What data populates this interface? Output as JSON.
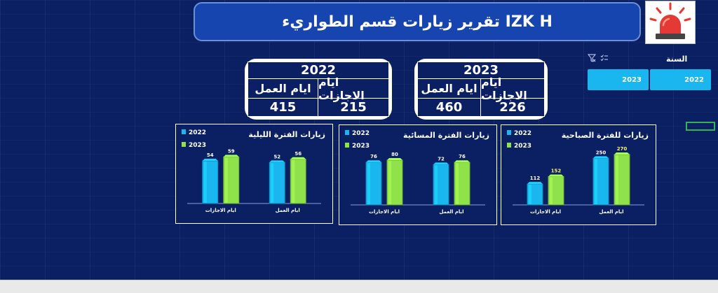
{
  "header": {
    "title": "تقرير زيارات قسم الطواريء IZK H"
  },
  "logo": {
    "icon": "siren-icon"
  },
  "slicer": {
    "label": "السنة",
    "icons": [
      "clear-filter-icon",
      "multi-select-icon"
    ],
    "items": [
      "2022",
      "2023"
    ],
    "color": "#19b6f0"
  },
  "kpis": [
    {
      "year": "2023",
      "work_label": "ايام العمل",
      "holiday_label": "ايام الاجازات",
      "work_value": "460",
      "holiday_value": "226"
    },
    {
      "year": "2022",
      "work_label": "ايام العمل",
      "holiday_label": "ايام الاجازات",
      "work_value": "415",
      "holiday_value": "215"
    }
  ],
  "chart_data": [
    {
      "type": "bar",
      "title": "زيارات للفترة الصباحية",
      "categories": [
        "ايام العمل",
        "ايام الاجازات"
      ],
      "series": [
        {
          "name": "2022",
          "values": [
            250,
            112
          ],
          "color": "#19b6f0"
        },
        {
          "name": "2023",
          "values": [
            270,
            152
          ],
          "color": "#8fe24a"
        }
      ],
      "ylim": [
        0,
        300
      ],
      "legend": "top-left"
    },
    {
      "type": "bar",
      "title": "زيارات الفترة المسائية",
      "categories": [
        "ايام العمل",
        "ايام الاجازات"
      ],
      "series": [
        {
          "name": "2022",
          "values": [
            72,
            76
          ],
          "color": "#19b6f0"
        },
        {
          "name": "2023",
          "values": [
            76,
            80
          ],
          "color": "#8fe24a"
        }
      ],
      "ylim": [
        0,
        100
      ],
      "legend": "top-left"
    },
    {
      "type": "bar",
      "title": "زيارات الفترة الليلية",
      "categories": [
        "ايام العمل",
        "ايام الاجازات"
      ],
      "series": [
        {
          "name": "2022",
          "values": [
            52,
            54
          ],
          "color": "#19b6f0"
        },
        {
          "name": "2023",
          "values": [
            56,
            59
          ],
          "color": "#8fe24a"
        }
      ],
      "ylim": [
        0,
        70
      ],
      "legend": "top-left"
    }
  ]
}
